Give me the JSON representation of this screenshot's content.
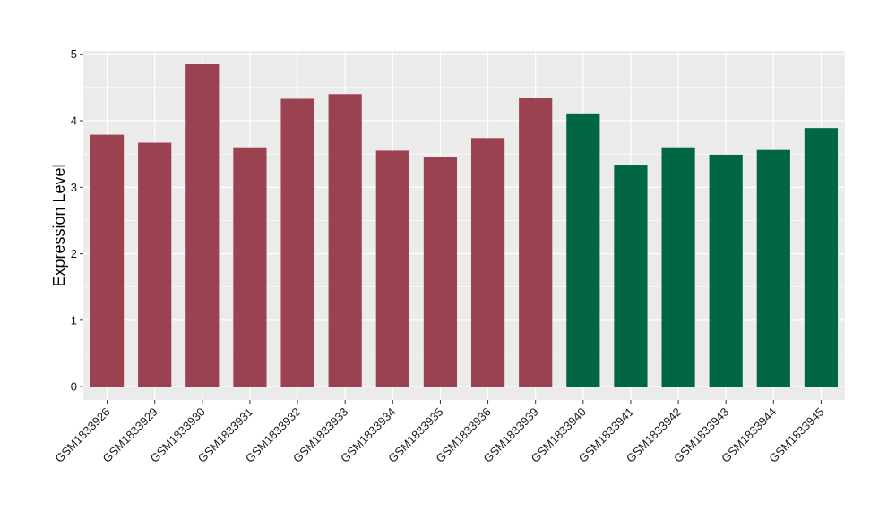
{
  "chart_data": {
    "type": "bar",
    "ylabel": "Expression Level",
    "xlabel": "",
    "ylim": [
      -0.2,
      5.05
    ],
    "yticks": [
      0,
      1,
      2,
      3,
      4,
      5
    ],
    "grid": true,
    "colors": {
      "group_a": "#9a4250",
      "group_b": "#006645",
      "panel": "#ebebeb",
      "grid": "#ffffff"
    },
    "categories": [
      "GSM1833926",
      "GSM1833929",
      "GSM1833930",
      "GSM1833931",
      "GSM1833932",
      "GSM1833933",
      "GSM1833934",
      "GSM1833935",
      "GSM1833936",
      "GSM1833939",
      "GSM1833940",
      "GSM1833941",
      "GSM1833942",
      "GSM1833943",
      "GSM1833944",
      "GSM1833945"
    ],
    "values": [
      3.79,
      3.67,
      4.85,
      3.6,
      4.33,
      4.4,
      3.55,
      3.45,
      3.74,
      4.35,
      4.11,
      3.34,
      3.6,
      3.49,
      3.56,
      3.89
    ],
    "groups": [
      "a",
      "a",
      "a",
      "a",
      "a",
      "a",
      "a",
      "a",
      "a",
      "a",
      "b",
      "b",
      "b",
      "b",
      "b",
      "b"
    ]
  }
}
